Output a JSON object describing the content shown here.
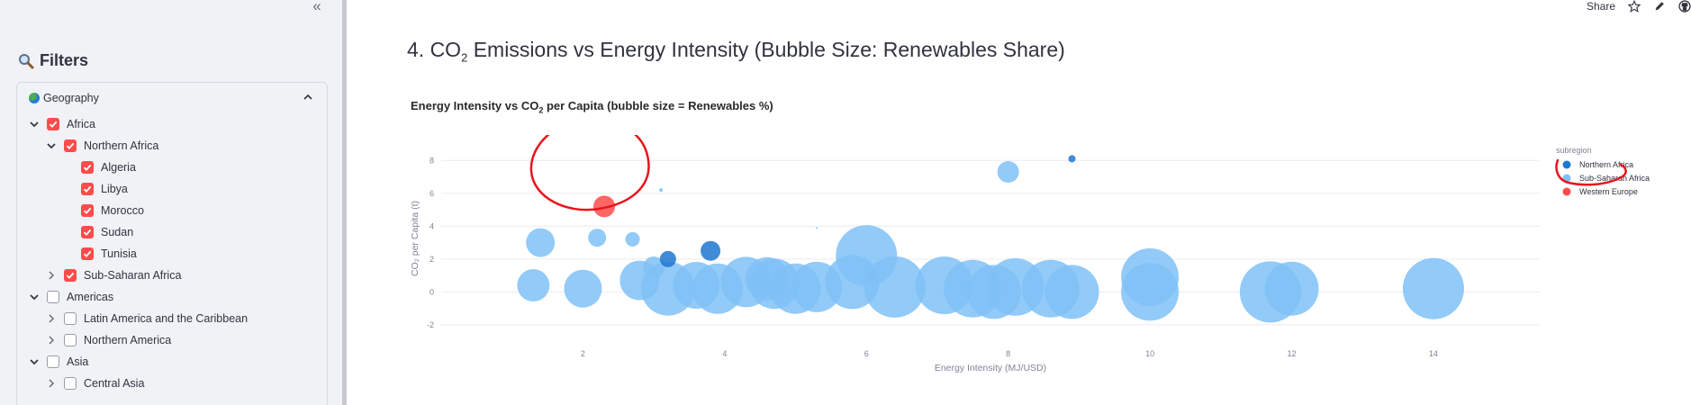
{
  "sidebar": {
    "collapse_icon": "double-chevron-left-icon",
    "filters_title": "Filters",
    "filters_icon": "search-icon",
    "geography": {
      "label": "Geography",
      "expanded": true,
      "tree": [
        {
          "label": "Africa",
          "level": 0,
          "checked": true,
          "expanded": true
        },
        {
          "label": "Northern Africa",
          "level": 1,
          "checked": true,
          "expanded": true
        },
        {
          "label": "Algeria",
          "level": 2,
          "checked": true
        },
        {
          "label": "Libya",
          "level": 2,
          "checked": true
        },
        {
          "label": "Morocco",
          "level": 2,
          "checked": true
        },
        {
          "label": "Sudan",
          "level": 2,
          "checked": true
        },
        {
          "label": "Tunisia",
          "level": 2,
          "checked": true
        },
        {
          "label": "Sub-Saharan Africa",
          "level": 1,
          "checked": true,
          "expanded": false
        },
        {
          "label": "Americas",
          "level": 0,
          "checked": false,
          "expanded": true
        },
        {
          "label": "Latin America and the Caribbean",
          "level": 1,
          "checked": false,
          "expanded": false
        },
        {
          "label": "Northern America",
          "level": 1,
          "checked": false,
          "expanded": false
        },
        {
          "label": "Asia",
          "level": 0,
          "checked": false,
          "expanded": true
        },
        {
          "label": "Central Asia",
          "level": 1,
          "checked": false,
          "expanded": false
        }
      ]
    }
  },
  "toolbar": {
    "share_label": "Share"
  },
  "page": {
    "title_pre": "4. CO",
    "title_sub": "2",
    "title_post": " Emissions vs Energy Intensity (Bubble Size: Renewables Share)"
  },
  "colors": {
    "accent": "#ff4b4b",
    "northern_africa": "#1f77d0",
    "sub_saharan_africa": "#7fc1f7",
    "western_europe": "#ff4b4b",
    "annotation": "#e8141c"
  },
  "chart_data": {
    "type": "scatter",
    "title_pre": "Energy Intensity vs CO",
    "title_sub": "2",
    "title_post": " per Capita (bubble size = Renewables %)",
    "xlabel": "Energy Intensity (MJ/USD)",
    "ylabel": "CO₂ per Capita (t)",
    "xlim": [
      0,
      15.5
    ],
    "ylim": [
      -2.5,
      9
    ],
    "xticks": [
      2,
      4,
      6,
      8,
      10,
      12,
      14
    ],
    "yticks": [
      -2,
      0,
      2,
      4,
      6,
      8
    ],
    "grid": true,
    "legend_title": "subregion",
    "legend_position": "right",
    "series": [
      {
        "name": "Northern Africa",
        "color": "#1f77d0",
        "points": [
          [
            8.9,
            8.1,
            4
          ],
          [
            3.2,
            2.0,
            9
          ],
          [
            3.8,
            2.5,
            11
          ]
        ]
      },
      {
        "name": "Sub-Saharan Africa",
        "color": "#7fc1f7",
        "points": [
          [
            3.1,
            6.2,
            2
          ],
          [
            8.0,
            7.3,
            12
          ],
          [
            5.3,
            3.9,
            1
          ],
          [
            2.2,
            3.3,
            10
          ],
          [
            2.7,
            3.2,
            8
          ],
          [
            1.4,
            3.0,
            16
          ],
          [
            2.0,
            0.2,
            21
          ],
          [
            1.3,
            0.4,
            18
          ],
          [
            2.8,
            0.7,
            22
          ],
          [
            3.2,
            0.2,
            30
          ],
          [
            3.6,
            0.4,
            26
          ],
          [
            3.9,
            0.2,
            28
          ],
          [
            4.3,
            0.6,
            28
          ],
          [
            4.7,
            0.5,
            28
          ],
          [
            5.0,
            0.2,
            28
          ],
          [
            5.3,
            0.3,
            28
          ],
          [
            5.8,
            0.6,
            30
          ],
          [
            6.0,
            2.2,
            34
          ],
          [
            6.4,
            0.3,
            34
          ],
          [
            7.1,
            0.4,
            32
          ],
          [
            7.5,
            0.2,
            32
          ],
          [
            7.8,
            0.0,
            30
          ],
          [
            8.1,
            0.3,
            32
          ],
          [
            8.6,
            0.2,
            32
          ],
          [
            8.9,
            0.0,
            30
          ],
          [
            10.0,
            0.9,
            32
          ],
          [
            10.0,
            0.0,
            32
          ],
          [
            11.7,
            0.0,
            34
          ],
          [
            12.0,
            0.2,
            30
          ],
          [
            14.0,
            0.2,
            34
          ],
          [
            4.6,
            0.8,
            24
          ],
          [
            3.0,
            1.5,
            12
          ]
        ]
      },
      {
        "name": "Western Europe",
        "color": "#ff4b4b",
        "points": [
          [
            2.3,
            5.2,
            12
          ]
        ]
      }
    ]
  }
}
